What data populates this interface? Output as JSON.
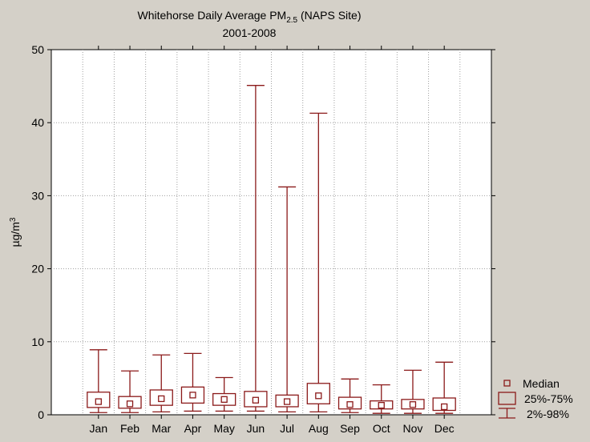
{
  "chart_data": {
    "type": "box",
    "title": "Whitehorse Daily Average PM",
    "title_sub": "2.5",
    "title_suffix": " (NAPS Site)",
    "subtitle": "2001-2008",
    "ylabel": "µg/m",
    "ylabel_sup": "3",
    "xlabel": "",
    "ylim": [
      0,
      50
    ],
    "yticks": [
      0,
      10,
      20,
      30,
      40,
      50
    ],
    "grid": true,
    "legend_position": "bottom-right",
    "categories": [
      "Jan",
      "Feb",
      "Mar",
      "Apr",
      "May",
      "Jun",
      "Jul",
      "Aug",
      "Sep",
      "Oct",
      "Nov",
      "Dec"
    ],
    "series": [
      {
        "stats": [
          {
            "median": 1.8,
            "q1": 1.0,
            "q3": 3.1,
            "p2": 0.3,
            "p98": 8.9
          },
          {
            "median": 1.5,
            "q1": 0.9,
            "q3": 2.5,
            "p2": 0.3,
            "p98": 6.0
          },
          {
            "median": 2.2,
            "q1": 1.3,
            "q3": 3.4,
            "p2": 0.4,
            "p98": 8.2
          },
          {
            "median": 2.7,
            "q1": 1.6,
            "q3": 3.8,
            "p2": 0.5,
            "p98": 8.4
          },
          {
            "median": 2.1,
            "q1": 1.3,
            "q3": 2.9,
            "p2": 0.5,
            "p98": 5.1
          },
          {
            "median": 2.0,
            "q1": 1.1,
            "q3": 3.2,
            "p2": 0.5,
            "p98": 45.1
          },
          {
            "median": 1.8,
            "q1": 1.1,
            "q3": 2.7,
            "p2": 0.4,
            "p98": 31.2
          },
          {
            "median": 2.6,
            "q1": 1.5,
            "q3": 4.3,
            "p2": 0.4,
            "p98": 41.3
          },
          {
            "median": 1.4,
            "q1": 0.8,
            "q3": 2.4,
            "p2": 0.3,
            "p98": 4.9
          },
          {
            "median": 1.3,
            "q1": 0.8,
            "q3": 1.9,
            "p2": 0.2,
            "p98": 4.1
          },
          {
            "median": 1.4,
            "q1": 0.8,
            "q3": 2.1,
            "p2": 0.2,
            "p98": 6.1
          },
          {
            "median": 1.1,
            "q1": 0.6,
            "q3": 2.3,
            "p2": 0.2,
            "p98": 7.2
          }
        ]
      }
    ],
    "legend": [
      "Median",
      "25%-75%",
      "2%-98%"
    ],
    "colors": {
      "background": "#d4d0c8",
      "plot_background": "#ffffff",
      "mark": "#8b1a1a",
      "grid": "#a0a0a0",
      "axis": "#000000"
    }
  }
}
